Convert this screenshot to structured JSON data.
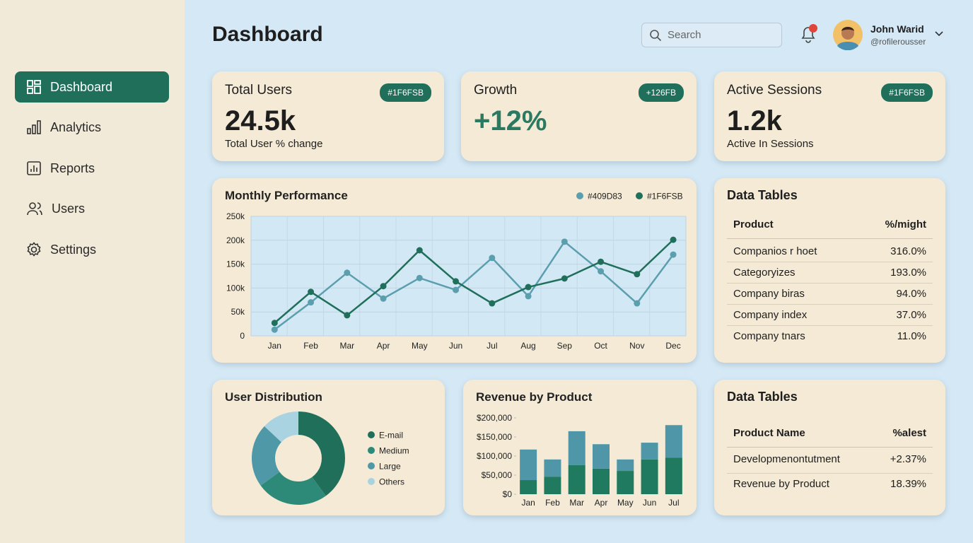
{
  "sidebar": {
    "nav": [
      "Dashboard",
      "Analytics",
      "Reports",
      "Users",
      "Settings"
    ]
  },
  "header": {
    "title": "Dashboard",
    "search_placeholder": "Search",
    "user_name": "John Warid",
    "user_handle": "@rofilerousser"
  },
  "stats": [
    {
      "title": "Total Users",
      "badge": "#1F6FSB",
      "value": "24.5k",
      "caption": "Total User % change"
    },
    {
      "title": "Growth",
      "badge": "+126FB",
      "value": "+12%"
    },
    {
      "title": "Active Sessions",
      "badge": "#1F6FSB",
      "value": "1.2k",
      "caption": "Active In Sessions"
    }
  ],
  "tables": [
    {
      "title": "Data Tables",
      "columns": [
        "Product",
        "%/might"
      ],
      "rows": [
        [
          "Companios r hoet",
          "316.0%"
        ],
        [
          "Categoryizes",
          "193.0%"
        ],
        [
          "Company biras",
          "94.0%"
        ],
        [
          "Company index",
          "37.0%"
        ],
        [
          "Company tnars",
          "11.0%"
        ]
      ]
    },
    {
      "title": "Data Tables",
      "columns": [
        "Product Name",
        "%alest"
      ],
      "rows": [
        [
          "Developmenontutment",
          "+2.37%"
        ],
        [
          "Revenue by Product",
          "18.39%"
        ]
      ]
    }
  ],
  "chart_data": [
    {
      "type": "line",
      "title": "Monthly Performance",
      "categories": [
        "Jan",
        "Feb",
        "Mar",
        "Apr",
        "May",
        "Jun",
        "Jul",
        "Aug",
        "Sep",
        "Oct",
        "Nov",
        "Dec"
      ],
      "series": [
        {
          "name": "#409D83",
          "color": "#5b9fae",
          "values": [
            13000,
            70000,
            132000,
            78000,
            121000,
            96000,
            163000,
            83000,
            197000,
            135000,
            68000,
            170000
          ]
        },
        {
          "name": "#1F6FSB",
          "color": "#1f6f5b",
          "values": [
            27000,
            92000,
            43000,
            104000,
            179000,
            114000,
            68000,
            102000,
            120000,
            155000,
            129000,
            201000
          ]
        }
      ],
      "ylim": [
        0,
        250000
      ],
      "yticks": [
        0,
        {
          "value": 50000,
          "label": "50k"
        },
        {
          "value": 100000,
          "label": "100k"
        },
        {
          "value": 150000,
          "label": "150k"
        },
        {
          "value": 200000,
          "label": "200k"
        },
        {
          "value": 250000,
          "label": "250k"
        }
      ],
      "grid": true
    },
    {
      "type": "pie",
      "title": "User Distribution",
      "categories": [
        "E-mail",
        "Medium",
        "Large",
        "Others"
      ],
      "values": [
        40,
        25,
        22,
        13
      ],
      "colors": [
        "#1f6f5b",
        "#2e8a78",
        "#4e98a8",
        "#a9d3e0"
      ],
      "legend": "right"
    },
    {
      "type": "bar",
      "title": "Revenue by Product",
      "categories": [
        "Jan",
        "Feb",
        "Mar",
        "Apr",
        "May",
        "Jun",
        "Jul"
      ],
      "stacked": true,
      "series": [
        {
          "color": "#1f7a60",
          "values": [
            37000,
            46000,
            76000,
            67000,
            61000,
            91000,
            96000
          ]
        },
        {
          "color": "#4f96a8",
          "values": [
            80000,
            45000,
            89000,
            64000,
            30000,
            44000,
            85000
          ]
        }
      ],
      "ylim": [
        0,
        200000
      ],
      "yticks": [
        {
          "value": 0,
          "label": "$0"
        },
        {
          "value": 50000,
          "label": "$50,000"
        },
        {
          "value": 100000,
          "label": "$100,000"
        },
        {
          "value": 150000,
          "label": "$150,000"
        },
        {
          "value": 200000,
          "label": "$200,000"
        }
      ]
    }
  ]
}
